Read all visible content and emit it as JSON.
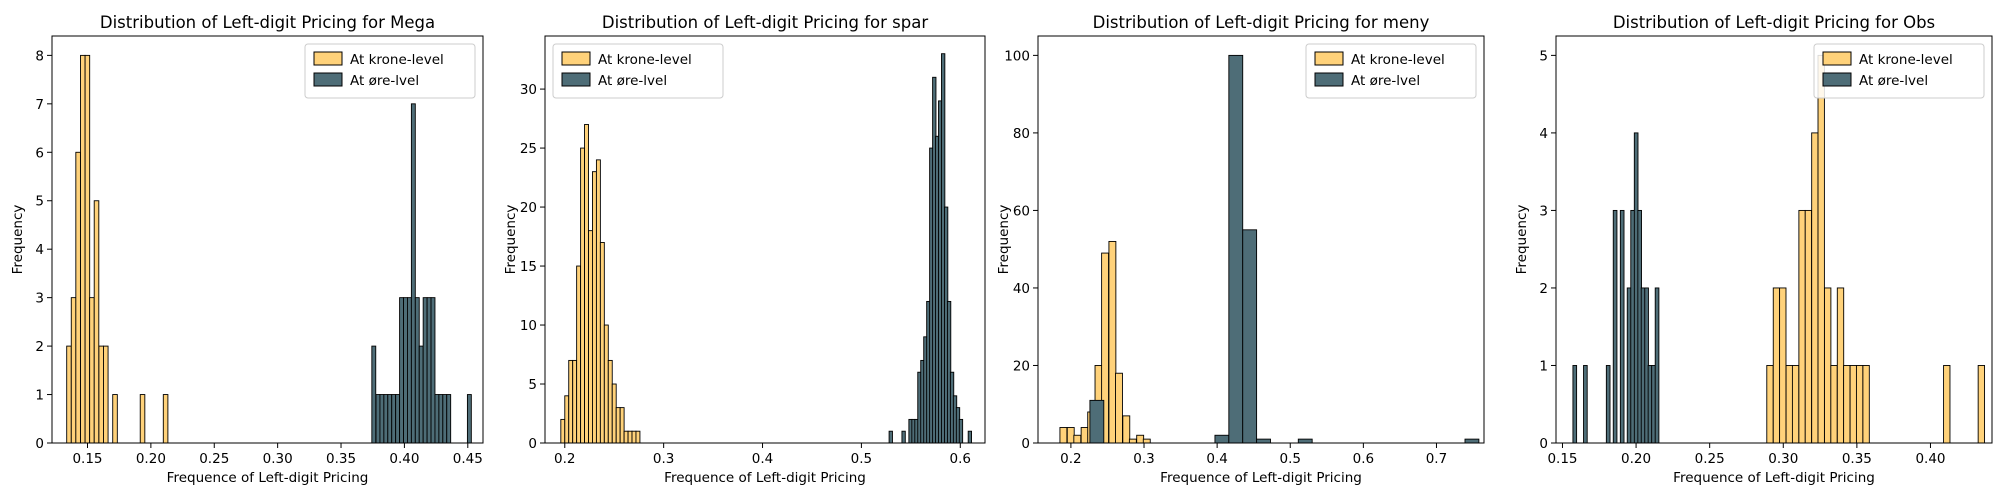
{
  "chart_data": [
    {
      "type": "bar",
      "title": "Distribution of Left-digit Pricing for Mega",
      "xlabel": "Frequence of Left-digit Pricing",
      "ylabel": "Frequency",
      "xlim": [
        0.122,
        0.462
      ],
      "ylim": [
        0,
        8.4
      ],
      "xticks": [
        0.15,
        0.2,
        0.25,
        0.3,
        0.35,
        0.4,
        0.45
      ],
      "xticklabels": [
        "0.15",
        "0.20",
        "0.25",
        "0.30",
        "0.35",
        "0.40",
        "0.45"
      ],
      "yticks": [
        0,
        1,
        2,
        3,
        4,
        5,
        6,
        7,
        8
      ],
      "yticklabels": [
        "0",
        "1",
        "2",
        "3",
        "4",
        "5",
        "6",
        "7",
        "8"
      ],
      "legend": "upper right",
      "series": [
        {
          "name": "At krone-level",
          "color": "#FFD27A",
          "bin_width": 0.00363,
          "bins": [
            [
              0.1336,
              2
            ],
            [
              0.1372,
              3
            ],
            [
              0.1408,
              6
            ],
            [
              0.1445,
              8
            ],
            [
              0.1481,
              8
            ],
            [
              0.1517,
              3
            ],
            [
              0.1553,
              5
            ],
            [
              0.159,
              2
            ],
            [
              0.1626,
              2
            ],
            [
              0.1699,
              1
            ],
            [
              0.1916,
              1
            ],
            [
              0.2098,
              1
            ]
          ]
        },
        {
          "name": "At øre-lvel",
          "color": "#4E6D77",
          "bin_width": 0.0031,
          "bins": [
            [
              0.3743,
              2
            ],
            [
              0.3776,
              1
            ],
            [
              0.3807,
              1
            ],
            [
              0.3838,
              1
            ],
            [
              0.3869,
              1
            ],
            [
              0.39,
              1
            ],
            [
              0.3931,
              1
            ],
            [
              0.3962,
              3
            ],
            [
              0.3993,
              3
            ],
            [
              0.4024,
              3
            ],
            [
              0.4055,
              7
            ],
            [
              0.4086,
              3
            ],
            [
              0.4117,
              2
            ],
            [
              0.4148,
              3
            ],
            [
              0.4179,
              3
            ],
            [
              0.421,
              3
            ],
            [
              0.4241,
              1
            ],
            [
              0.4272,
              1
            ],
            [
              0.4303,
              1
            ],
            [
              0.4334,
              1
            ],
            [
              0.4497,
              1
            ]
          ]
        }
      ]
    },
    {
      "type": "bar",
      "title": "Distribution of Left-digit Pricing for spar",
      "xlabel": "Frequence of Left-digit Pricing",
      "ylabel": "Frequency",
      "xlim": [
        0.18,
        0.625
      ],
      "ylim": [
        0,
        34.5
      ],
      "xticks": [
        0.2,
        0.3,
        0.4,
        0.5,
        0.6
      ],
      "xticklabels": [
        "0.2",
        "0.3",
        "0.4",
        "0.5",
        "0.6"
      ],
      "yticks": [
        0,
        5,
        10,
        15,
        20,
        25,
        30
      ],
      "yticklabels": [
        "0",
        "5",
        "10",
        "15",
        "20",
        "25",
        "30"
      ],
      "legend": "upper left",
      "series": [
        {
          "name": "At krone-level",
          "color": "#FFD27A",
          "bin_width": 0.004,
          "bins": [
            [
              0.196,
              2
            ],
            [
              0.2,
              4
            ],
            [
              0.204,
              7
            ],
            [
              0.208,
              7
            ],
            [
              0.212,
              15
            ],
            [
              0.216,
              25
            ],
            [
              0.22,
              27
            ],
            [
              0.224,
              18
            ],
            [
              0.228,
              23
            ],
            [
              0.232,
              24
            ],
            [
              0.236,
              17
            ],
            [
              0.24,
              10
            ],
            [
              0.244,
              7
            ],
            [
              0.248,
              5
            ],
            [
              0.252,
              3
            ],
            [
              0.256,
              3
            ],
            [
              0.26,
              1
            ],
            [
              0.264,
              1
            ],
            [
              0.268,
              1
            ],
            [
              0.272,
              1
            ]
          ]
        },
        {
          "name": "At øre-lvel",
          "color": "#4E6D77",
          "bin_width": 0.0034,
          "bins": [
            [
              0.528,
              1
            ],
            [
              0.541,
              1
            ],
            [
              0.548,
              2
            ],
            [
              0.551,
              2
            ],
            [
              0.554,
              2
            ],
            [
              0.557,
              6
            ],
            [
              0.56,
              7
            ],
            [
              0.563,
              9
            ],
            [
              0.566,
              12
            ],
            [
              0.569,
              25
            ],
            [
              0.572,
              31
            ],
            [
              0.575,
              26
            ],
            [
              0.578,
              29
            ],
            [
              0.581,
              33
            ],
            [
              0.584,
              20
            ],
            [
              0.587,
              12
            ],
            [
              0.59,
              6
            ],
            [
              0.593,
              4
            ],
            [
              0.596,
              3
            ],
            [
              0.599,
              2
            ],
            [
              0.608,
              1
            ]
          ]
        }
      ]
    },
    {
      "type": "bar",
      "title": "Distribution of Left-digit Pricing for meny",
      "xlabel": "Frequence of Left-digit Pricing",
      "ylabel": "Frequency",
      "xlim": [
        0.155,
        0.765
      ],
      "ylim": [
        0,
        105
      ],
      "xticks": [
        0.2,
        0.3,
        0.4,
        0.5,
        0.6,
        0.7
      ],
      "xticklabels": [
        "0.2",
        "0.3",
        "0.4",
        "0.5",
        "0.6",
        "0.7"
      ],
      "yticks": [
        0,
        20,
        40,
        60,
        80,
        100
      ],
      "yticklabels": [
        "0",
        "20",
        "40",
        "60",
        "80",
        "100"
      ],
      "legend": "upper right",
      "series": [
        {
          "name": "At krone-level",
          "color": "#FFD27A",
          "bin_width": 0.0095,
          "bins": [
            [
              0.185,
              4
            ],
            [
              0.195,
              4
            ],
            [
              0.204,
              2
            ],
            [
              0.214,
              4
            ],
            [
              0.223,
              8
            ],
            [
              0.233,
              20
            ],
            [
              0.242,
              49
            ],
            [
              0.252,
              52
            ],
            [
              0.261,
              18
            ],
            [
              0.271,
              7
            ],
            [
              0.28,
              1
            ],
            [
              0.29,
              2
            ],
            [
              0.299,
              1
            ]
          ]
        },
        {
          "name": "At øre-lvel",
          "color": "#4E6D77",
          "bin_width": 0.019,
          "bins": [
            [
              0.226,
              11
            ],
            [
              0.397,
              2
            ],
            [
              0.416,
              100
            ],
            [
              0.435,
              55
            ],
            [
              0.454,
              1
            ],
            [
              0.511,
              1
            ],
            [
              0.739,
              1
            ]
          ]
        }
      ]
    },
    {
      "type": "bar",
      "title": "Distribution of Left-digit Pricing for Obs",
      "xlabel": "Frequence of Left-digit Pricing",
      "ylabel": "Frequency",
      "xlim": [
        0.1456,
        0.4418
      ],
      "ylim": [
        0,
        5.25
      ],
      "xticks": [
        0.15,
        0.2,
        0.25,
        0.3,
        0.35,
        0.4
      ],
      "xticklabels": [
        "0.15",
        "0.20",
        "0.25",
        "0.30",
        "0.35",
        "0.40"
      ],
      "yticks": [
        0,
        1,
        2,
        3,
        4,
        5
      ],
      "yticklabels": [
        "0",
        "1",
        "2",
        "3",
        "4",
        "5"
      ],
      "legend": "upper right",
      "series": [
        {
          "name": "At krone-level",
          "color": "#FFD27A",
          "bin_width": 0.00435,
          "bins": [
            [
              0.2888,
              1
            ],
            [
              0.2932,
              2
            ],
            [
              0.2975,
              2
            ],
            [
              0.3019,
              1
            ],
            [
              0.3062,
              1
            ],
            [
              0.3106,
              3
            ],
            [
              0.3149,
              3
            ],
            [
              0.3193,
              4
            ],
            [
              0.3236,
              5
            ],
            [
              0.328,
              2
            ],
            [
              0.3323,
              1
            ],
            [
              0.3367,
              2
            ],
            [
              0.341,
              1
            ],
            [
              0.3454,
              1
            ],
            [
              0.3497,
              1
            ],
            [
              0.3541,
              1
            ],
            [
              0.4089,
              1
            ],
            [
              0.4324,
              1
            ]
          ]
        },
        {
          "name": "At øre-lvel",
          "color": "#4E6D77",
          "bin_width": 0.0025,
          "bins": [
            [
              0.1571,
              1
            ],
            [
              0.1643,
              1
            ],
            [
              0.1798,
              1
            ],
            [
              0.1845,
              3
            ],
            [
              0.1893,
              3
            ],
            [
              0.194,
              2
            ],
            [
              0.1964,
              3
            ],
            [
              0.1988,
              4
            ],
            [
              0.2012,
              3
            ],
            [
              0.2035,
              2
            ],
            [
              0.2059,
              2
            ],
            [
              0.2082,
              1
            ],
            [
              0.2106,
              1
            ],
            [
              0.213,
              2
            ]
          ]
        }
      ]
    }
  ]
}
